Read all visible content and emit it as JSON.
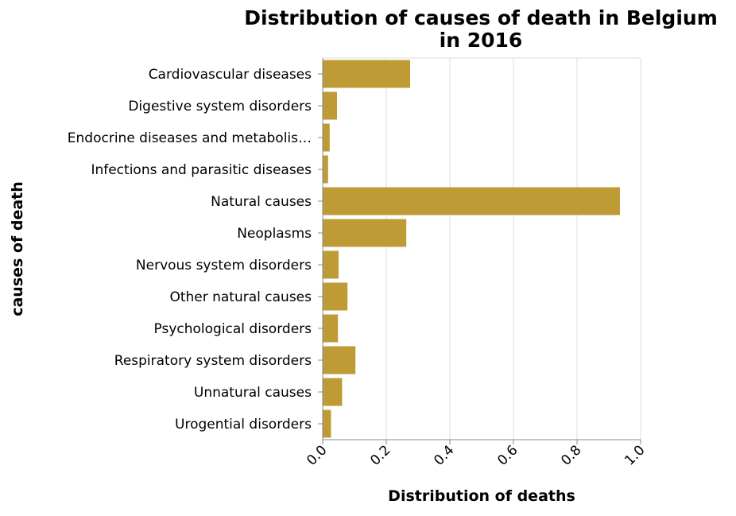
{
  "chart_data": {
    "type": "bar",
    "orientation": "horizontal",
    "title": [
      "Distribution of causes of death in Belgium",
      "in 2016"
    ],
    "xlabel": "Distribution of deaths",
    "ylabel": "causes of death",
    "xlim": [
      0,
      1
    ],
    "xticks": [
      "0.0",
      "0.2",
      "0.4",
      "0.6",
      "0.8",
      "1.0"
    ],
    "grid": true,
    "bar_color": "#bf9b36",
    "categories": [
      "Cardiovascular diseases",
      "Digestive system disorders",
      "Endocrine diseases and metabolis…",
      "Infections and parasitic diseases",
      "Natural causes",
      "Neoplasms",
      "Nervous system disorders",
      "Other natural causes",
      "Psychological disorders",
      "Respiratory system disorders",
      "Unnatural causes",
      "Urogential disorders"
    ],
    "values": [
      0.275,
      0.045,
      0.022,
      0.017,
      0.935,
      0.263,
      0.05,
      0.078,
      0.048,
      0.103,
      0.061,
      0.026
    ]
  }
}
